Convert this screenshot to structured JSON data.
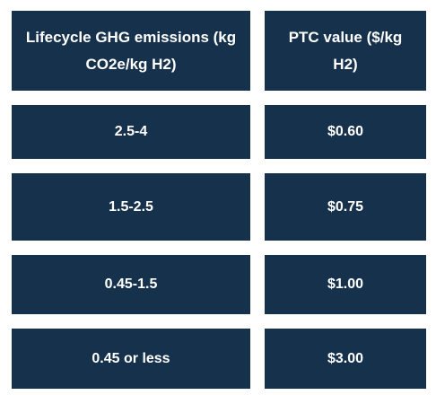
{
  "table": {
    "header": [
      "Lifecycle GHG emissions (kg CO2e/kg H2)",
      "PTC value ($/kg H2)"
    ],
    "rows": [
      [
        "2.5-4",
        "$0.60"
      ],
      [
        "1.5-2.5",
        "$0.75"
      ],
      [
        "0.45-1.5",
        "$1.00"
      ],
      [
        "0.45 or less",
        "$3.00"
      ]
    ]
  }
}
